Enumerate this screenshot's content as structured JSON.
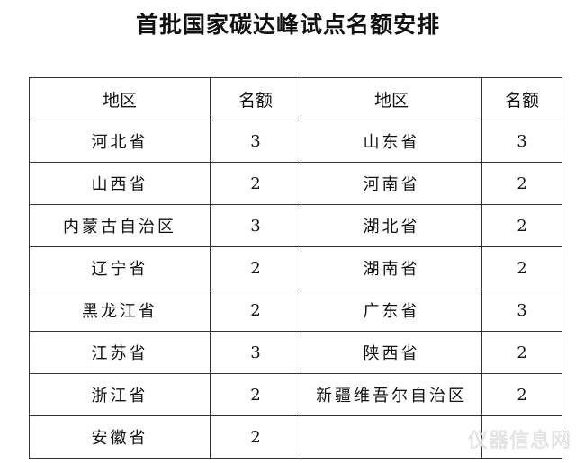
{
  "title": "首批国家碳达峰试点名额安排",
  "headers": [
    "地区",
    "名额",
    "地区",
    "名额"
  ],
  "rows": [
    {
      "region_a": "河北省",
      "count_a": "3",
      "region_b": "山东省",
      "count_b": "3"
    },
    {
      "region_a": "山西省",
      "count_a": "2",
      "region_b": "河南省",
      "count_b": "2"
    },
    {
      "region_a": "内蒙古自治区",
      "count_a": "3",
      "region_b": "湖北省",
      "count_b": "2"
    },
    {
      "region_a": "辽宁省",
      "count_a": "2",
      "region_b": "湖南省",
      "count_b": "2"
    },
    {
      "region_a": "黑龙江省",
      "count_a": "2",
      "region_b": "广东省",
      "count_b": "3"
    },
    {
      "region_a": "江苏省",
      "count_a": "3",
      "region_b": "陕西省",
      "count_b": "2"
    },
    {
      "region_a": "浙江省",
      "count_a": "2",
      "region_b": "新疆维吾尔自治区",
      "count_b": "2"
    },
    {
      "region_a": "安徽省",
      "count_a": "2",
      "region_b": "",
      "count_b": ""
    }
  ],
  "watermark": "仪器信息网"
}
